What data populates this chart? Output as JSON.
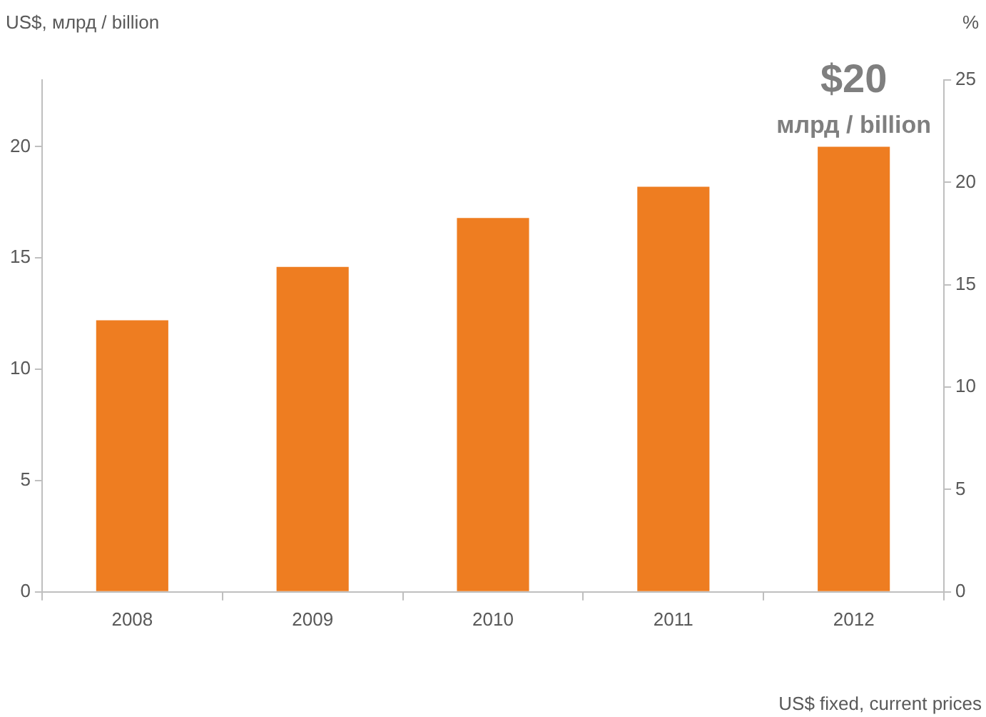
{
  "chart_data": {
    "type": "bar",
    "ylabel": "US$, млрд / billion",
    "y2label": "%",
    "categories": [
      "2008",
      "2009",
      "2010",
      "2011",
      "2012"
    ],
    "series": [
      {
        "color": "#ee7d21",
        "values": [
          12.2,
          14.6,
          16.8,
          18.2,
          20
        ]
      }
    ],
    "ylim": [
      0,
      23
    ],
    "yticks": [
      0,
      5,
      10,
      15,
      20
    ],
    "y2lim": [
      0,
      25
    ],
    "y2ticks": [
      0,
      5,
      10,
      15,
      20,
      25
    ],
    "annotations": [
      {
        "text": "$20",
        "x": "2012",
        "y": 20
      },
      {
        "text": "млрд / billion",
        "x": "2012",
        "y": 20
      },
      "US$ fixed, current prices"
    ],
    "grid": false,
    "legend": false
  }
}
